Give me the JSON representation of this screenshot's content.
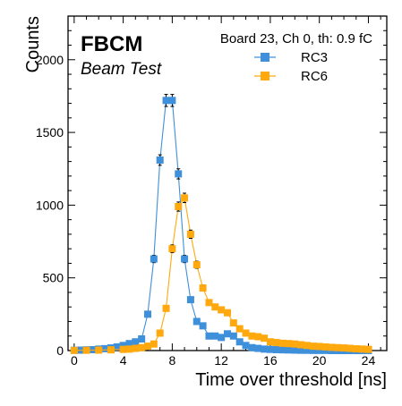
{
  "chart_data": {
    "type": "line",
    "title": "FBCM",
    "subtitle": "Beam Test",
    "annotation": "Board 23, Ch 0, th: 0.9 fC",
    "xlabel": "Time over threshold [ns]",
    "ylabel": "Counts",
    "xlim": [
      -0.5,
      25.5
    ],
    "ylim": [
      0,
      2300
    ],
    "xticks": [
      0,
      4,
      8,
      12,
      16,
      20,
      24
    ],
    "yticks": [
      0,
      500,
      1000,
      1500,
      2000
    ],
    "grid": false,
    "legend_position": "top-right",
    "x": [
      0,
      1,
      2,
      3,
      4,
      5,
      6,
      7,
      8,
      9,
      10,
      11,
      12,
      13,
      14,
      15,
      16,
      17,
      18,
      19,
      20,
      21,
      22,
      23,
      24
    ],
    "series": [
      {
        "name": "RC3",
        "color": "#3f90da",
        "x": [
          0,
          0.5,
          1,
          1.5,
          2,
          2.5,
          3,
          3.5,
          4,
          4.5,
          5,
          5.5,
          6,
          6.5,
          7,
          7.5,
          8,
          8.5,
          9,
          9.5,
          10,
          10.5,
          11,
          11.5,
          12,
          12.5,
          13,
          13.5,
          14,
          14.5,
          15,
          15.5,
          16,
          16.5,
          17,
          17.5,
          18,
          18.5,
          19,
          19.5,
          20,
          20.5,
          21,
          21.5,
          22,
          22.5,
          23,
          23.5,
          24
        ],
        "values": [
          2,
          3,
          5,
          6,
          10,
          13,
          18,
          25,
          35,
          48,
          60,
          80,
          250,
          630,
          1310,
          1720,
          1720,
          1215,
          630,
          350,
          200,
          170,
          100,
          100,
          90,
          115,
          100,
          60,
          35,
          20,
          15,
          10,
          8,
          6,
          5,
          4,
          3,
          2,
          2,
          1,
          1,
          1,
          0,
          0,
          0,
          0,
          0,
          0,
          0
        ]
      },
      {
        "name": "RC6",
        "color": "#ffa90e",
        "x": [
          0,
          1,
          2,
          3,
          4,
          4.5,
          5,
          5.5,
          6,
          6.5,
          7,
          7.5,
          8,
          8.5,
          9,
          9.5,
          10,
          10.5,
          11,
          11.5,
          12,
          12.5,
          13,
          13.5,
          14,
          14.5,
          15,
          15.5,
          16,
          16.5,
          17,
          17.5,
          18,
          18.5,
          19,
          19.5,
          20,
          20.5,
          21,
          21.5,
          22,
          22.5,
          23,
          23.5,
          24
        ],
        "values": [
          1,
          2,
          3,
          5,
          8,
          10,
          15,
          20,
          30,
          45,
          120,
          290,
          700,
          990,
          1050,
          800,
          590,
          430,
          330,
          300,
          280,
          260,
          190,
          150,
          120,
          100,
          95,
          85,
          60,
          55,
          50,
          48,
          45,
          40,
          35,
          30,
          28,
          25,
          22,
          20,
          18,
          15,
          12,
          10,
          8
        ]
      }
    ]
  }
}
